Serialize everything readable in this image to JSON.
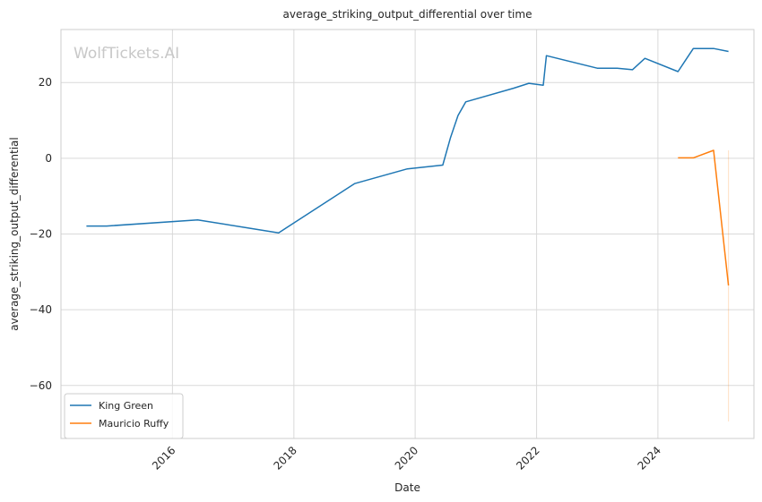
{
  "chart_data": {
    "type": "line",
    "title": "average_striking_output_differential over time",
    "xlabel": "Date",
    "ylabel": "average_striking_output_differential",
    "watermark": "WolfTickets.AI",
    "x_ticks": [
      "2016",
      "2018",
      "2020",
      "2022",
      "2024"
    ],
    "y_ticks": [
      20,
      0,
      -20,
      -40,
      -60
    ],
    "xlim": [
      "2014-03-01",
      "2025-08-01"
    ],
    "ylim": [
      -74,
      34
    ],
    "grid": true,
    "legend_position": "lower-left",
    "series": [
      {
        "name": "King Green",
        "color": "#1f77b4",
        "points": [
          {
            "x": "2014-08-01",
            "y": -17.9
          },
          {
            "x": "2014-12-01",
            "y": -17.9
          },
          {
            "x": "2016-06-01",
            "y": -16.3
          },
          {
            "x": "2017-10-01",
            "y": -19.7
          },
          {
            "x": "2019-01-01",
            "y": -6.7
          },
          {
            "x": "2019-11-15",
            "y": -2.8
          },
          {
            "x": "2020-06-15",
            "y": -1.8
          },
          {
            "x": "2020-08-01",
            "y": 5.5
          },
          {
            "x": "2020-09-15",
            "y": 11.3
          },
          {
            "x": "2020-11-01",
            "y": 14.9
          },
          {
            "x": "2021-08-15",
            "y": 18.5
          },
          {
            "x": "2021-11-15",
            "y": 19.8
          },
          {
            "x": "2022-02-10",
            "y": 19.3
          },
          {
            "x": "2022-03-01",
            "y": 27.1
          },
          {
            "x": "2023-01-01",
            "y": 23.8
          },
          {
            "x": "2023-05-01",
            "y": 23.8
          },
          {
            "x": "2023-08-01",
            "y": 23.4
          },
          {
            "x": "2023-10-15",
            "y": 26.4
          },
          {
            "x": "2024-05-01",
            "y": 22.9
          },
          {
            "x": "2024-08-01",
            "y": 29.0
          },
          {
            "x": "2024-12-01",
            "y": 29.0
          },
          {
            "x": "2025-03-01",
            "y": 28.2
          }
        ]
      },
      {
        "name": "Mauricio Ruffy",
        "color": "#ff7f0e",
        "points": [
          {
            "x": "2024-05-01",
            "y": 0.1
          },
          {
            "x": "2024-08-01",
            "y": 0.1
          },
          {
            "x": "2024-12-01",
            "y": 2.1
          },
          {
            "x": "2025-03-01",
            "y": -33.6
          }
        ],
        "band": {
          "x": "2025-03-01",
          "low": -69.5,
          "high": 2.1
        }
      }
    ]
  }
}
